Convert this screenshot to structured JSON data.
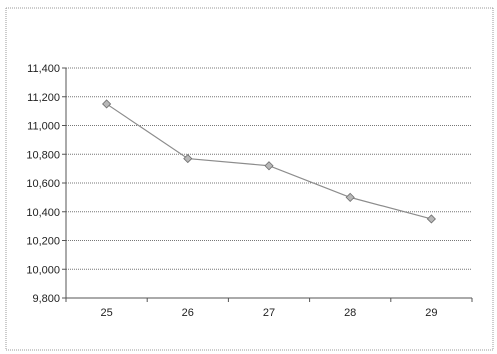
{
  "chart_data": {
    "type": "line",
    "title": "",
    "xlabel": "",
    "ylabel": "",
    "categories": [
      "25",
      "26",
      "27",
      "28",
      "29"
    ],
    "series": [
      {
        "values": [
          11150,
          10770,
          10720,
          10500,
          10350
        ]
      }
    ],
    "ylim": [
      9800,
      11400
    ],
    "yticks": [
      9800,
      10000,
      10200,
      10400,
      10600,
      10800,
      11000,
      11200,
      11400
    ],
    "ytick_labels": [
      "9,800",
      "10,000",
      "10,200",
      "10,400",
      "10,600",
      "10,800",
      "11,000",
      "11,200",
      "11,400"
    ],
    "grid": true,
    "legend": "none",
    "colors": {
      "line": "#8c8c8c",
      "marker_fill": "#b8b8b8",
      "marker_stroke": "#6e6e6e"
    }
  }
}
